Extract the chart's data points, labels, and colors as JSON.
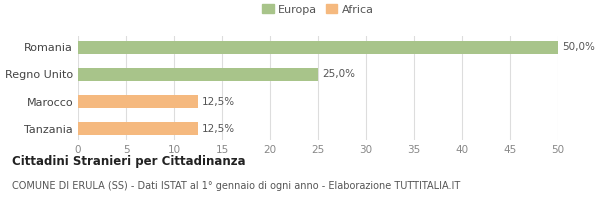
{
  "categories": [
    "Romania",
    "Regno Unito",
    "Marocco",
    "Tanzania"
  ],
  "values": [
    50.0,
    25.0,
    12.5,
    12.5
  ],
  "bar_colors": [
    "#a8c48a",
    "#a8c48a",
    "#f5b97f",
    "#f5b97f"
  ],
  "legend_labels": [
    "Europa",
    "Africa"
  ],
  "legend_colors": [
    "#a8c48a",
    "#f5b97f"
  ],
  "bar_labels": [
    "50,0%",
    "25,0%",
    "12,5%",
    "12,5%"
  ],
  "xlim": [
    0,
    50
  ],
  "xticks": [
    0,
    5,
    10,
    15,
    20,
    25,
    30,
    35,
    40,
    45,
    50
  ],
  "title_bold": "Cittadini Stranieri per Cittadinanza",
  "subtitle": "COMUNE DI ERULA (SS) - Dati ISTAT al 1° gennaio di ogni anno - Elaborazione TUTTITALIA.IT",
  "background_color": "#ffffff",
  "grid_color": "#dddddd",
  "bar_height": 0.5
}
